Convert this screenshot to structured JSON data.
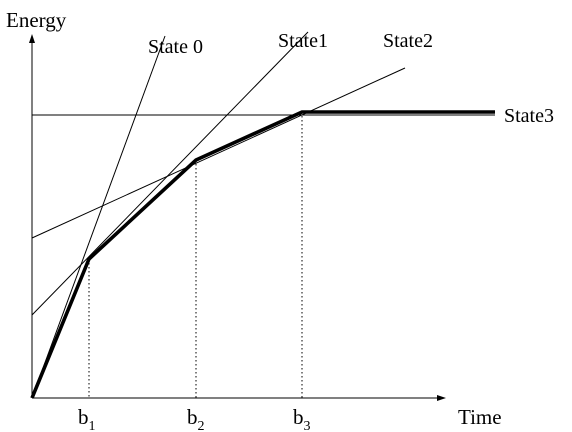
{
  "axes": {
    "y_label": "Energy",
    "x_label": "Time"
  },
  "states": [
    {
      "label": "State 0"
    },
    {
      "label": "State1"
    },
    {
      "label": "State2"
    },
    {
      "label": "State3"
    }
  ],
  "breakpoints": [
    {
      "base": "b",
      "sub": "1"
    },
    {
      "base": "b",
      "sub": "2"
    },
    {
      "base": "b",
      "sub": "3"
    }
  ]
}
